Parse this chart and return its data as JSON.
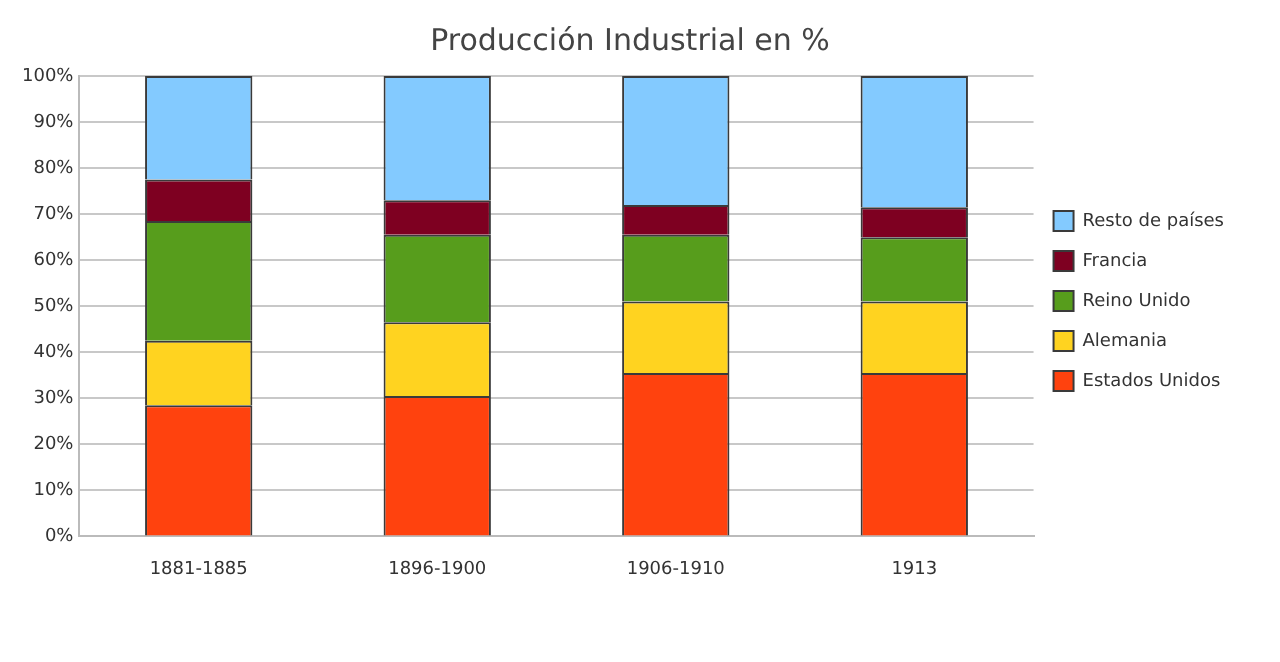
{
  "chart_data": {
    "type": "bar",
    "title": "Producción Industrial en %",
    "stacked": true,
    "categories": [
      "1881-1885",
      "1896-1900",
      "1906-1910",
      "1913"
    ],
    "series": [
      {
        "name": "Estados Unidos",
        "color": "#ff420e",
        "values": [
          28.5,
          30.5,
          35.5,
          35.5
        ]
      },
      {
        "name": "Alemania",
        "color": "#ffd320",
        "values": [
          14,
          16,
          15.5,
          15.5
        ]
      },
      {
        "name": "Reino Unido",
        "color": "#579d1c",
        "values": [
          26,
          19,
          14.5,
          14
        ]
      },
      {
        "name": "Francia",
        "color": "#7e0021",
        "values": [
          9,
          7.5,
          6.5,
          6.5
        ]
      },
      {
        "name": "Resto de países",
        "color": "#83caff",
        "values": [
          22.5,
          27,
          28,
          28.5
        ]
      }
    ],
    "ylim": [
      0,
      100
    ],
    "yticks": [
      {
        "value": 0,
        "label": "0%"
      },
      {
        "value": 10,
        "label": "10%"
      },
      {
        "value": 20,
        "label": "20%"
      },
      {
        "value": 30,
        "label": "30%"
      },
      {
        "value": 40,
        "label": "40%"
      },
      {
        "value": 50,
        "label": "50%"
      },
      {
        "value": 60,
        "label": "60%"
      },
      {
        "value": 70,
        "label": "70%"
      },
      {
        "value": 80,
        "label": "80%"
      },
      {
        "value": 90,
        "label": "90%"
      },
      {
        "value": 100,
        "label": "100%"
      }
    ],
    "grid": "y",
    "legend": "right"
  }
}
